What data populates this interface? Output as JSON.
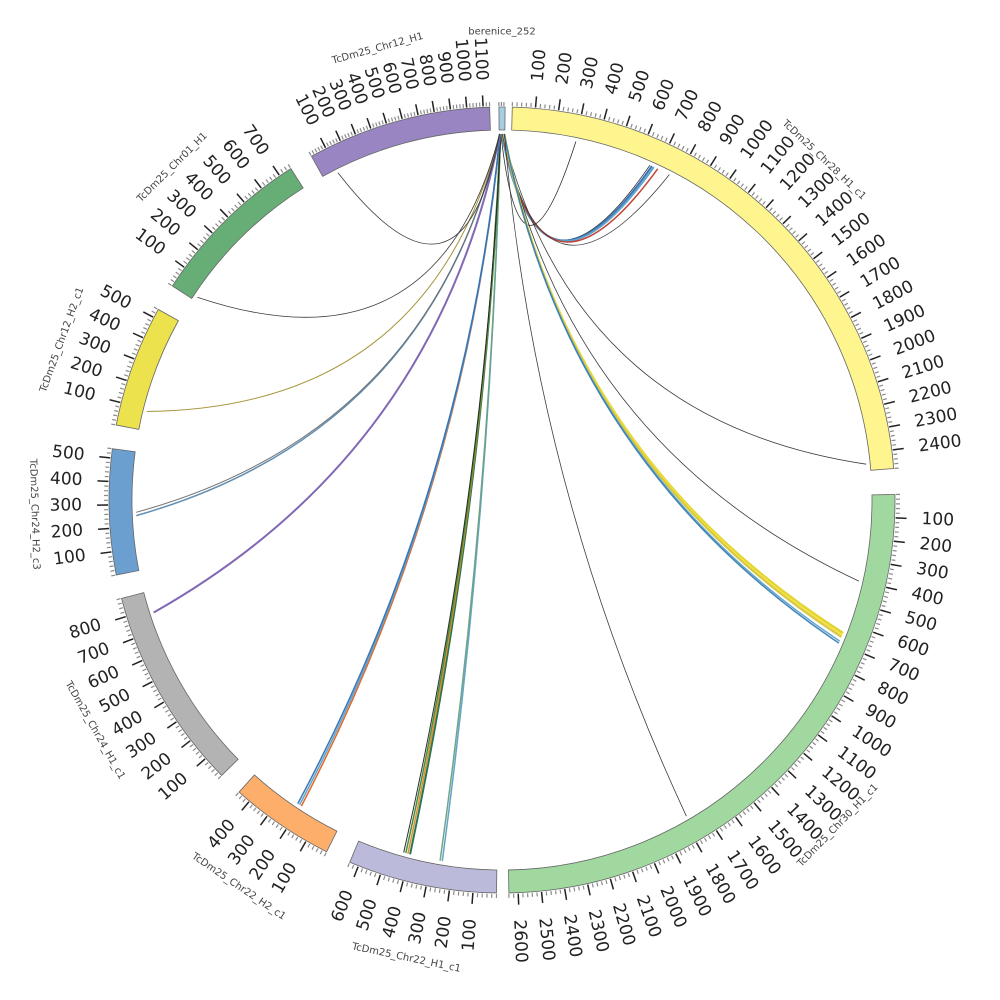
{
  "diagram": {
    "type": "circos",
    "chromosomes": [
      {
        "name": "berenice_252",
        "label": "berenice_252",
        "length": 50,
        "tick_step": 100,
        "color": "#a6cee3"
      },
      {
        "name": "TcDm25_Chr28_H1_c1",
        "label": "TcDm25_Chr28_H1_c1",
        "length": 2480,
        "tick_step": 100,
        "color": "#fff58f"
      },
      {
        "name": "TcDm25_Chr30_H1_c1",
        "label": "TcDm25_Chr30_H1_c1",
        "length": 2640,
        "tick_step": 100,
        "color": "#a0d8a0"
      },
      {
        "name": "TcDm25_Chr22_H1_c1",
        "label": "TcDm25_Chr22_H1_c1",
        "length": 640,
        "tick_step": 100,
        "color": "#bcbadb"
      },
      {
        "name": "TcDm25_Chr22_H2_c1",
        "label": "TcDm25_Chr22_H2_c1",
        "length": 460,
        "tick_step": 100,
        "color": "#fdae6b"
      },
      {
        "name": "TcDm25_Chr24_H1_c1",
        "label": "TcDm25_Chr24_H1_c1",
        "length": 880,
        "tick_step": 100,
        "color": "#b3b3b3"
      },
      {
        "name": "TcDm25_Chr24_H2_c3",
        "label": "TcDm25_Chr24_H2_c3",
        "length": 540,
        "tick_step": 100,
        "color": "#6a9fd0"
      },
      {
        "name": "TcDm25_Chr12_H2_c1",
        "label": "TcDm25_Chr12_H2_c1",
        "length": 540,
        "tick_step": 100,
        "color": "#ece24e"
      },
      {
        "name": "TcDm25_Chr01_H1",
        "label": "TcDm25_Chr01_H1",
        "length": 760,
        "tick_step": 100,
        "color": "#66ad76"
      },
      {
        "name": "TcDm25_Chr12_H1",
        "label": "TcDm25_Chr12_H1",
        "length": 1140,
        "tick_step": 100,
        "color": "#9885c2"
      }
    ],
    "links": [
      {
        "source": "berenice_252",
        "s_pos": 20,
        "target": "TcDm25_Chr28_H1_c1",
        "t_pos": 660,
        "color": "#222222",
        "width": 0.8
      },
      {
        "source": "berenice_252",
        "s_pos": 25,
        "target": "TcDm25_Chr28_H1_c1",
        "t_pos": 670,
        "color": "#2f6fb5",
        "width": 2
      },
      {
        "source": "berenice_252",
        "s_pos": 25,
        "target": "TcDm25_Chr28_H1_c1",
        "t_pos": 680,
        "color": "#5aa0c8",
        "width": 2
      },
      {
        "source": "berenice_252",
        "s_pos": 30,
        "target": "TcDm25_Chr28_H1_c1",
        "t_pos": 700,
        "color": "#c03b2a",
        "width": 1.5
      },
      {
        "source": "berenice_252",
        "s_pos": 30,
        "target": "TcDm25_Chr28_H1_c1",
        "t_pos": 760,
        "color": "#333333",
        "width": 0.8
      },
      {
        "source": "berenice_252",
        "s_pos": 15,
        "target": "TcDm25_Chr28_H1_c1",
        "t_pos": 300,
        "color": "#222222",
        "width": 0.8
      },
      {
        "source": "berenice_252",
        "s_pos": 35,
        "target": "TcDm25_Chr28_H1_c1",
        "t_pos": 2450,
        "color": "#333333",
        "width": 0.8
      },
      {
        "source": "berenice_252",
        "s_pos": 40,
        "target": "TcDm25_Chr30_H1_c1",
        "t_pos": 400,
        "color": "#333333",
        "width": 0.8
      },
      {
        "source": "berenice_252",
        "s_pos": 42,
        "target": "TcDm25_Chr30_H1_c1",
        "t_pos": 650,
        "color": "#e0d020",
        "width": 2.5
      },
      {
        "source": "berenice_252",
        "s_pos": 43,
        "target": "TcDm25_Chr30_H1_c1",
        "t_pos": 660,
        "color": "#f0e040",
        "width": 2.5
      },
      {
        "source": "berenice_252",
        "s_pos": 44,
        "target": "TcDm25_Chr30_H1_c1",
        "t_pos": 670,
        "color": "#d4c640",
        "width": 2
      },
      {
        "source": "berenice_252",
        "s_pos": 45,
        "target": "TcDm25_Chr30_H1_c1",
        "t_pos": 690,
        "color": "#5aa0c8",
        "width": 1.5
      },
      {
        "source": "berenice_252",
        "s_pos": 45,
        "target": "TcDm25_Chr30_H1_c1",
        "t_pos": 700,
        "color": "#3a7fb5",
        "width": 1.5
      },
      {
        "source": "berenice_252",
        "s_pos": 46,
        "target": "TcDm25_Chr30_H1_c1",
        "t_pos": 1780,
        "color": "#333333",
        "width": 0.8
      },
      {
        "source": "berenice_252",
        "s_pos": 10,
        "target": "TcDm25_Chr22_H1_c1",
        "t_pos": 250,
        "color": "#5aa0c8",
        "width": 1.5
      },
      {
        "source": "berenice_252",
        "s_pos": 11,
        "target": "TcDm25_Chr22_H1_c1",
        "t_pos": 260,
        "color": "#6aa080",
        "width": 1.5
      },
      {
        "source": "berenice_252",
        "s_pos": 12,
        "target": "TcDm25_Chr22_H1_c1",
        "t_pos": 400,
        "color": "#1f6f4a",
        "width": 2
      },
      {
        "source": "berenice_252",
        "s_pos": 13,
        "target": "TcDm25_Chr22_H1_c1",
        "t_pos": 410,
        "color": "#e08a20",
        "width": 1.5
      },
      {
        "source": "berenice_252",
        "s_pos": 14,
        "target": "TcDm25_Chr22_H1_c1",
        "t_pos": 420,
        "color": "#3a8a3a",
        "width": 1.5
      },
      {
        "source": "berenice_252",
        "s_pos": 14,
        "target": "TcDm25_Chr22_H1_c1",
        "t_pos": 430,
        "color": "#222222",
        "width": 1
      },
      {
        "source": "berenice_252",
        "s_pos": 9,
        "target": "TcDm25_Chr22_H2_c1",
        "t_pos": 200,
        "color": "#e06020",
        "width": 1.5
      },
      {
        "source": "berenice_252",
        "s_pos": 9,
        "target": "TcDm25_Chr22_H2_c1",
        "t_pos": 210,
        "color": "#5aa0c8",
        "width": 1.5
      },
      {
        "source": "berenice_252",
        "s_pos": 8,
        "target": "TcDm25_Chr22_H2_c1",
        "t_pos": 220,
        "color": "#2f6fb5",
        "width": 1.5
      },
      {
        "source": "berenice_252",
        "s_pos": 7,
        "target": "TcDm25_Chr24_H1_c1",
        "t_pos": 780,
        "color": "#7a60b0",
        "width": 2
      },
      {
        "source": "berenice_252",
        "s_pos": 6,
        "target": "TcDm25_Chr24_H2_c3",
        "t_pos": 250,
        "color": "#5a8ab0",
        "width": 1.5
      },
      {
        "source": "berenice_252",
        "s_pos": 6,
        "target": "TcDm25_Chr24_H2_c3",
        "t_pos": 265,
        "color": "#6a6a6a",
        "width": 1
      },
      {
        "source": "berenice_252",
        "s_pos": 5,
        "target": "TcDm25_Chr12_H2_c1",
        "t_pos": 90,
        "color": "#a09030",
        "width": 1
      },
      {
        "source": "berenice_252",
        "s_pos": 4,
        "target": "TcDm25_Chr01_H1",
        "t_pos": 20,
        "color": "#333333",
        "width": 0.8
      },
      {
        "source": "berenice_252",
        "s_pos": 3,
        "target": "TcDm25_Chr12_H1",
        "t_pos": 100,
        "color": "#333333",
        "width": 0.8
      }
    ]
  }
}
